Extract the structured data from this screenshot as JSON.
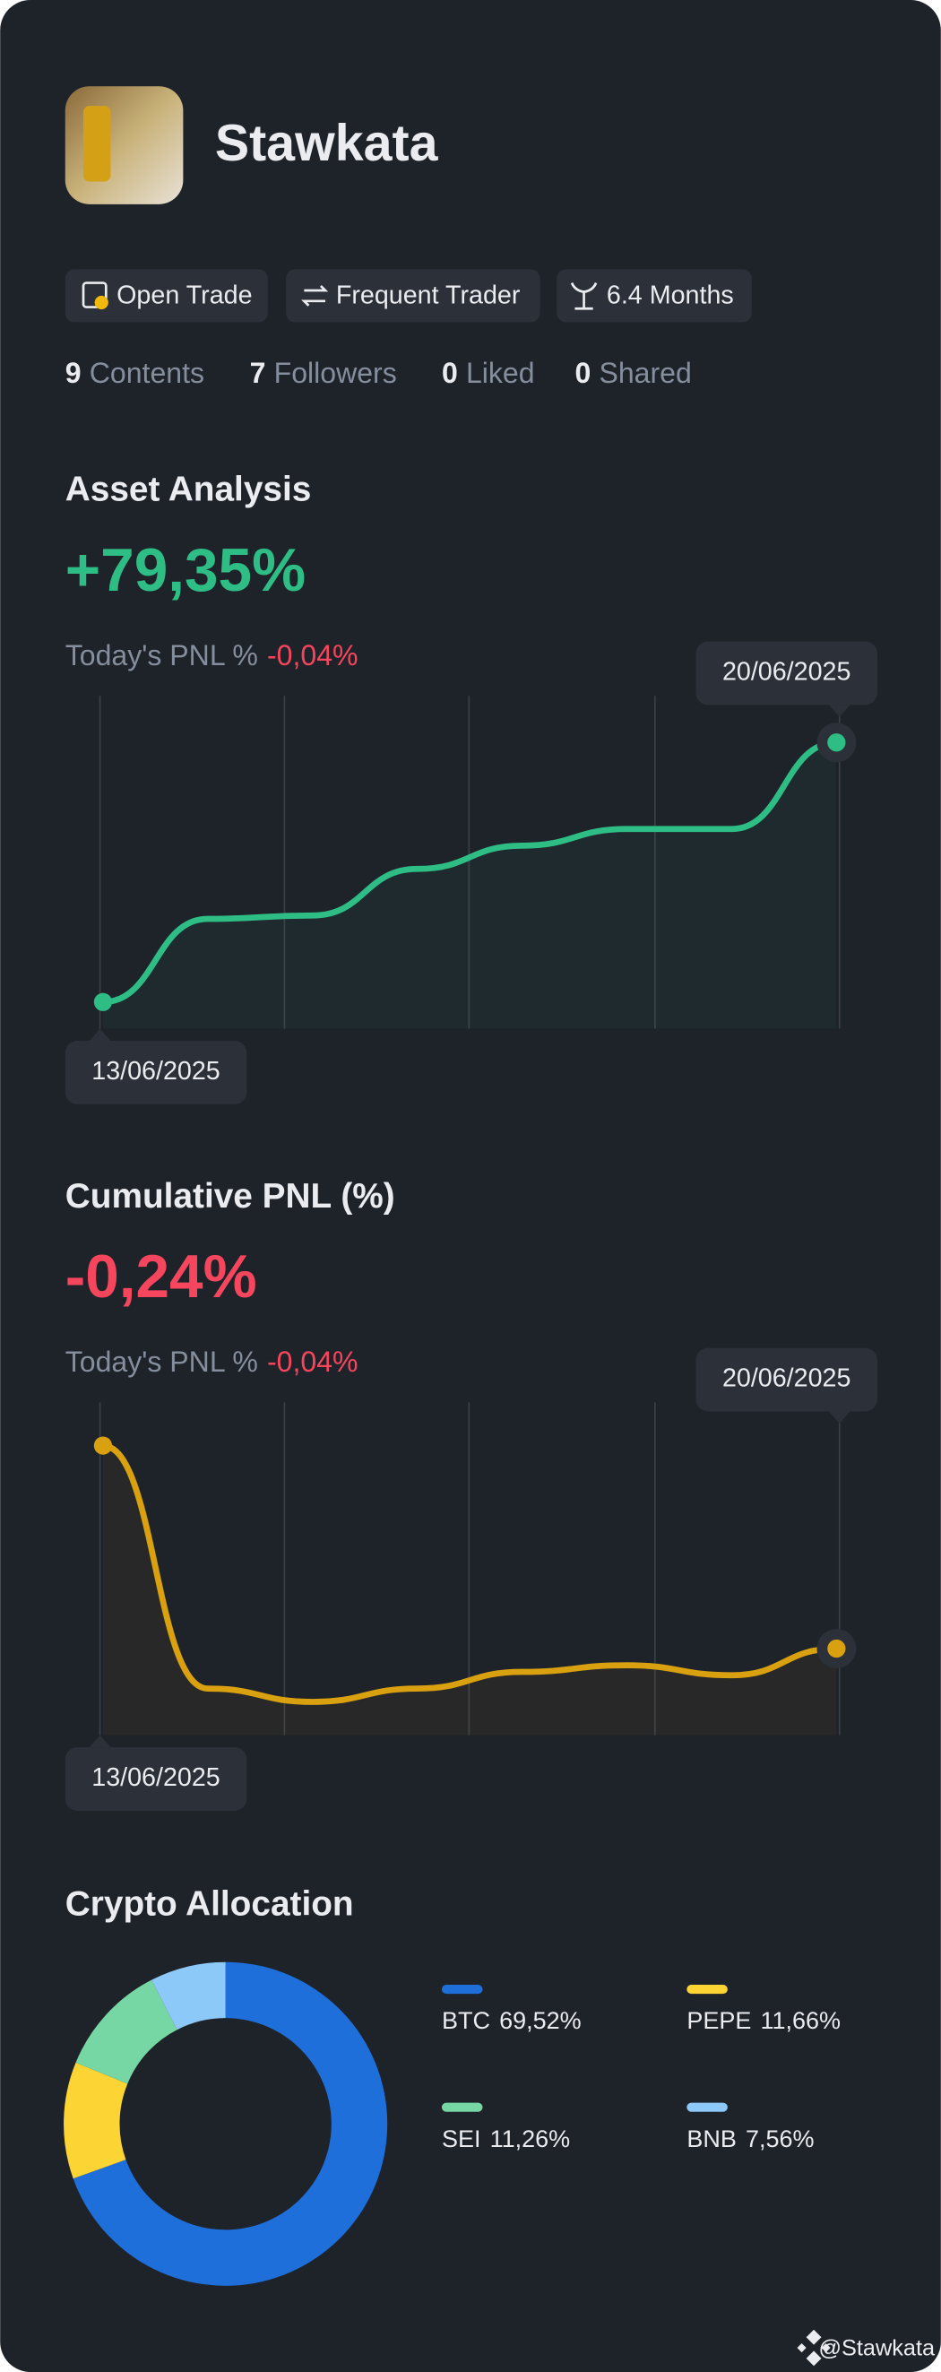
{
  "profile": {
    "name": "Stawkata",
    "badges": [
      "Open Trade",
      "Frequent Trader",
      "6.4 Months"
    ],
    "stats": [
      {
        "count": 9,
        "label": "Contents"
      },
      {
        "count": 7,
        "label": "Followers"
      },
      {
        "count": 0,
        "label": "Liked"
      },
      {
        "count": 0,
        "label": "Shared"
      }
    ]
  },
  "chart_data": [
    {
      "type": "line",
      "title": "Asset Analysis",
      "headline": "+79,35%",
      "subtitle_label": "Today's PNL %",
      "subtitle_value": "-0,04%",
      "categories": [
        "13/06/2025",
        null,
        null,
        null,
        null,
        null,
        null,
        "20/06/2025"
      ],
      "values": [
        8,
        33,
        34,
        48,
        55,
        60,
        60,
        86
      ],
      "color": "#2ebd85",
      "ylim": [
        0,
        100
      ]
    },
    {
      "type": "line",
      "title": "Cumulative PNL (%)",
      "headline": "-0,24%",
      "subtitle_label": "Today's PNL %",
      "subtitle_value": "-0,04%",
      "categories": [
        "13/06/2025",
        null,
        null,
        null,
        null,
        null,
        null,
        "20/06/2025"
      ],
      "values": [
        87,
        14,
        10,
        14,
        19,
        21,
        18,
        26
      ],
      "color": "#d9a00f",
      "ylim": [
        0,
        100
      ]
    },
    {
      "type": "pie",
      "title": "Crypto Allocation",
      "categories": [
        "BTC",
        "PEPE",
        "SEI",
        "BNB"
      ],
      "values": [
        69.52,
        11.66,
        11.26,
        7.56
      ],
      "value_labels": [
        "69,52%",
        "11,66%",
        "11,26%",
        "7,56%"
      ],
      "colors": [
        "#1f6fdb",
        "#fcd535",
        "#76d7a5",
        "#8cc8f8"
      ]
    }
  ],
  "footer": "@Stawkata"
}
